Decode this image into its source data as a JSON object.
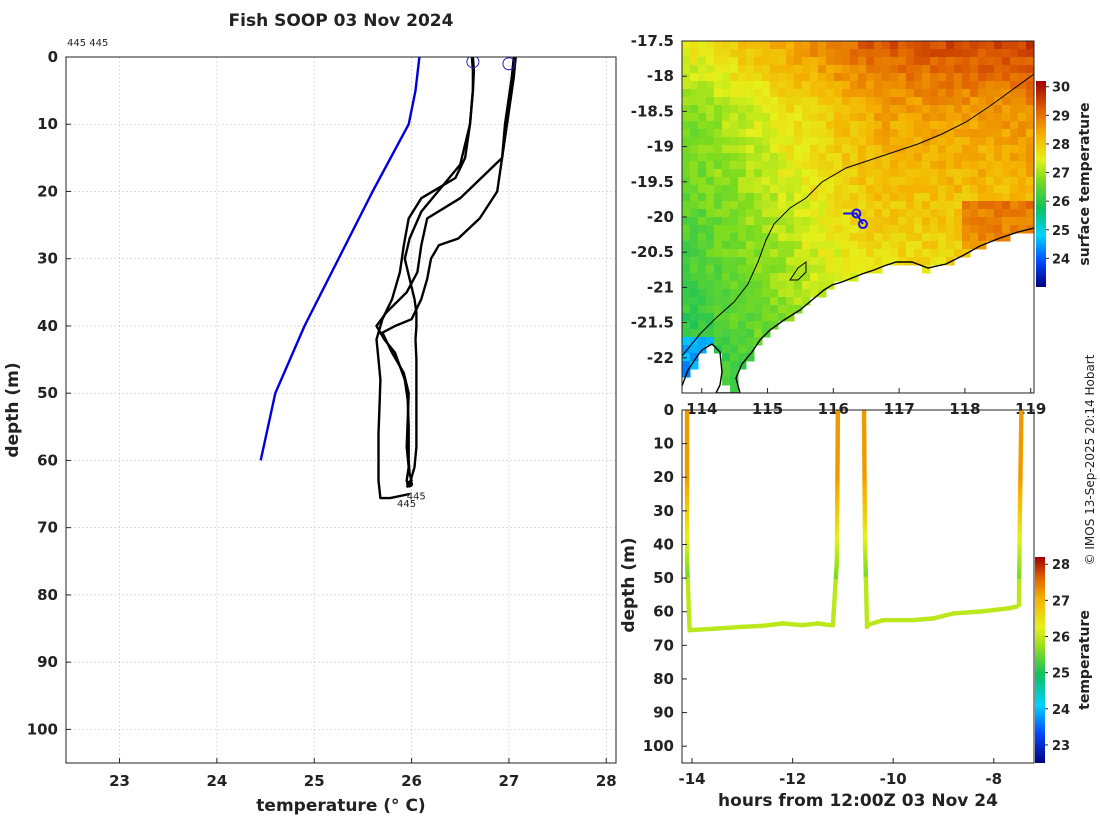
{
  "title": "Fish SOOP 03 Nov 2024",
  "credit": "© IMOS 13-Sep-2025 20:14 Hobart",
  "colors": {
    "profile": "#000000",
    "climatology": "#0000dd",
    "track": "#1010ff",
    "coast": "#000000"
  },
  "chart_data": [
    {
      "type": "line",
      "name": "temperature-profiles",
      "xlabel": "temperature (° C)",
      "ylabel": "depth (m)",
      "xlim": [
        22.45,
        28.1
      ],
      "ylim": [
        105,
        0
      ],
      "xticks": [
        23,
        24,
        25,
        26,
        27,
        28
      ],
      "yticks": [
        0,
        10,
        20,
        30,
        40,
        50,
        60,
        70,
        80,
        90,
        100
      ],
      "grid": true,
      "label_top": "445 445",
      "annotations": [
        {
          "text": "445",
          "x": 25.85,
          "y": 66.3
        },
        {
          "text": "445",
          "x": 25.95,
          "y": 65.2
        }
      ],
      "surface_markers": [
        {
          "x": 26.63,
          "y": 0.7
        },
        {
          "x": 27.0,
          "y": 1.0
        }
      ],
      "series": [
        {
          "name": "climatology",
          "x": [
            26.08,
            26.04,
            25.97,
            25.6,
            24.9,
            24.6,
            24.45
          ],
          "y": [
            0,
            5,
            10,
            20,
            40,
            50,
            60
          ]
        },
        {
          "name": "profile-1",
          "x": [
            26.62,
            26.63,
            26.63,
            26.6,
            26.55,
            26.45,
            26.1,
            25.97,
            25.92,
            25.88,
            25.8,
            25.7,
            25.64,
            25.66,
            25.68,
            25.67,
            25.66,
            25.66,
            25.66,
            25.68,
            25.78,
            25.98
          ],
          "y": [
            0,
            2,
            5,
            10,
            15,
            18,
            21,
            24,
            28,
            32,
            36,
            39,
            42,
            45,
            48,
            52,
            56,
            60,
            63,
            65.6,
            65.6,
            65.0
          ]
        },
        {
          "name": "profile-2",
          "x": [
            26.63,
            26.64,
            26.63,
            26.6,
            26.5,
            26.1,
            25.98,
            25.93,
            25.98,
            26.03,
            26.05,
            26.05,
            26.04,
            26.05,
            26.05,
            26.05,
            26.05,
            26.03,
            25.99,
            25.97
          ],
          "y": [
            0,
            2,
            5,
            10,
            16,
            23,
            27,
            30,
            33,
            36,
            38,
            40,
            42,
            45,
            50,
            55,
            58,
            61,
            63,
            64
          ]
        },
        {
          "name": "profile-3",
          "x": [
            27.05,
            27.03,
            27.0,
            26.96,
            26.93,
            26.5,
            26.16,
            26.1,
            26.06,
            25.95,
            25.74,
            25.64,
            25.72,
            25.83,
            25.93,
            25.96,
            25.97,
            25.97,
            25.97,
            25.98,
            26.0,
            25.95
          ],
          "y": [
            0,
            3,
            6,
            10,
            15,
            21,
            24,
            28,
            32,
            35,
            38,
            40,
            42,
            44,
            48,
            51,
            55,
            58,
            60,
            62,
            63,
            64
          ]
        },
        {
          "name": "profile-4",
          "x": [
            27.07,
            27.05,
            27.02,
            26.98,
            26.94,
            26.88,
            26.7,
            26.48,
            26.28,
            26.2,
            26.16,
            26.1,
            26.0,
            25.83,
            25.7,
            25.8,
            25.92,
            25.97,
            25.96,
            25.95,
            25.97,
            25.95,
            25.97
          ],
          "y": [
            0,
            3,
            6,
            10,
            14,
            20,
            24,
            27,
            28,
            30,
            33,
            36,
            39,
            40,
            41,
            44,
            47,
            50,
            54,
            58,
            61,
            63,
            64
          ]
        }
      ]
    },
    {
      "type": "heatmap",
      "name": "surface-temperature-map",
      "xlim": [
        113.7,
        119.05
      ],
      "ylim": [
        -22.5,
        -17.5
      ],
      "xticks": [
        114,
        115,
        116,
        117,
        118,
        119
      ],
      "yticks": [
        -17.5,
        -18,
        -18.5,
        -19,
        -19.5,
        -20,
        -20.5,
        -21,
        -21.5,
        -22
      ],
      "colorbar_label": "surface temperature",
      "clim": [
        23,
        30.2
      ],
      "colorbar_ticks": [
        24,
        25,
        26,
        27,
        28,
        29,
        30
      ],
      "track": [
        {
          "lon": 116.15,
          "lat": -19.95
        },
        {
          "lon": 116.35,
          "lat": -19.95
        },
        {
          "lon": 116.45,
          "lat": -20.1
        }
      ]
    },
    {
      "type": "scatter",
      "name": "depth-time-section",
      "xlabel": "hours from 12:00Z 03 Nov 24",
      "ylabel": "depth (m)",
      "xlim": [
        -14.2,
        -7.2
      ],
      "ylim": [
        105,
        0
      ],
      "xticks": [
        -14,
        -12,
        -10,
        -8
      ],
      "yticks": [
        0,
        10,
        20,
        30,
        40,
        50,
        60,
        70,
        80,
        90,
        100
      ],
      "colorbar_label": "temperature",
      "clim": [
        22.5,
        28.2
      ],
      "colorbar_ticks": [
        23,
        24,
        25,
        26,
        27,
        28
      ],
      "segments": [
        {
          "x": [
            -14.1,
            -14.1,
            -14.05
          ],
          "y": [
            0,
            45,
            65
          ]
        },
        {
          "x": [
            -14.05,
            -13.5,
            -13.0,
            -12.6,
            -12.2,
            -11.8,
            -11.5,
            -11.25
          ],
          "y": [
            65.5,
            65,
            64.5,
            64.2,
            63.5,
            64,
            63.5,
            64
          ]
        },
        {
          "x": [
            -11.2,
            -11.12,
            -11.1
          ],
          "y": [
            64,
            45,
            0
          ]
        },
        {
          "x": [
            -10.58,
            -10.56,
            -10.52
          ],
          "y": [
            0,
            40,
            64.5
          ]
        },
        {
          "x": [
            -10.52,
            -10.2,
            -9.6,
            -9.2,
            -8.8,
            -8.3,
            -7.7,
            -7.55
          ],
          "y": [
            64,
            62.5,
            62.5,
            62,
            60.5,
            60,
            59,
            58.5
          ]
        },
        {
          "x": [
            -7.5,
            -7.48,
            -7.45
          ],
          "y": [
            58,
            30,
            0
          ]
        }
      ]
    }
  ]
}
